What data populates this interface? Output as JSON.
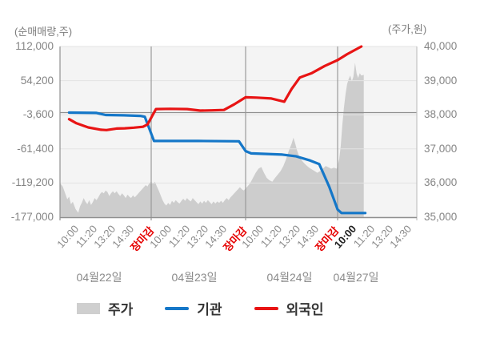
{
  "chart_data": {
    "type": "composite",
    "title": "",
    "x_axis": {
      "unit": "day_fraction",
      "days": [
        {
          "label": "04월22일",
          "times": [
            "10:00",
            "11:20",
            "13:20",
            "14:30",
            "장마감"
          ]
        },
        {
          "label": "04월23일",
          "times": [
            "10:00",
            "11:20",
            "13:20",
            "14:30",
            "장마감"
          ]
        },
        {
          "label": "04월24일",
          "times": [
            "10:00",
            "11:20",
            "13:20",
            "14:30",
            "장마감"
          ]
        },
        {
          "label": "04월27일",
          "times": [
            "10:00",
            "11:20",
            "13:20",
            "14:30"
          ],
          "current_time": "10:00"
        }
      ],
      "close_label": "장마감",
      "close_label_color": "#e60000"
    },
    "left_axis": {
      "label": "(순매매량,주)",
      "tick_labels": [
        "112,000",
        "54,200",
        "-3,600",
        "-61,400",
        "-119,200",
        "-177,000"
      ],
      "ticks": [
        112000,
        54200,
        -3600,
        -61400,
        -119200,
        -177000
      ]
    },
    "right_axis": {
      "label": "(주가,원)",
      "tick_labels": [
        "40,000",
        "39,000",
        "38,000",
        "37,000",
        "36,000",
        "35,000"
      ],
      "ticks": [
        40000,
        39000,
        38000,
        37000,
        36000,
        35000
      ]
    },
    "series": [
      {
        "name": "주가",
        "type": "area",
        "axis": "right",
        "color": "#cfcfcf",
        "points": [
          [
            0.0,
            36000
          ],
          [
            0.03,
            35900
          ],
          [
            0.05,
            35750
          ],
          [
            0.08,
            35520
          ],
          [
            0.1,
            35600
          ],
          [
            0.12,
            35380
          ],
          [
            0.14,
            35450
          ],
          [
            0.17,
            35240
          ],
          [
            0.2,
            35130
          ],
          [
            0.22,
            35320
          ],
          [
            0.24,
            35430
          ],
          [
            0.26,
            35560
          ],
          [
            0.28,
            35450
          ],
          [
            0.3,
            35380
          ],
          [
            0.32,
            35500
          ],
          [
            0.34,
            35360
          ],
          [
            0.36,
            35440
          ],
          [
            0.38,
            35560
          ],
          [
            0.4,
            35500
          ],
          [
            0.42,
            35580
          ],
          [
            0.44,
            35680
          ],
          [
            0.46,
            35740
          ],
          [
            0.48,
            35700
          ],
          [
            0.5,
            35780
          ],
          [
            0.52,
            35740
          ],
          [
            0.54,
            35620
          ],
          [
            0.56,
            35700
          ],
          [
            0.58,
            35760
          ],
          [
            0.6,
            35700
          ],
          [
            0.62,
            35760
          ],
          [
            0.64,
            35680
          ],
          [
            0.66,
            35620
          ],
          [
            0.68,
            35700
          ],
          [
            0.7,
            35640
          ],
          [
            0.72,
            35560
          ],
          [
            0.74,
            35660
          ],
          [
            0.76,
            35600
          ],
          [
            0.78,
            35560
          ],
          [
            0.8,
            35640
          ],
          [
            0.82,
            35580
          ],
          [
            0.84,
            35640
          ],
          [
            0.86,
            35700
          ],
          [
            0.88,
            35760
          ],
          [
            0.9,
            35820
          ],
          [
            0.92,
            35880
          ],
          [
            0.94,
            35940
          ],
          [
            0.96,
            35900
          ],
          [
            0.98,
            36000
          ],
          [
            1.0,
            36040
          ],
          [
            1.02,
            35980
          ],
          [
            1.04,
            36040
          ],
          [
            1.06,
            35900
          ],
          [
            1.08,
            35780
          ],
          [
            1.1,
            35640
          ],
          [
            1.12,
            35500
          ],
          [
            1.14,
            35400
          ],
          [
            1.16,
            35340
          ],
          [
            1.18,
            35420
          ],
          [
            1.2,
            35360
          ],
          [
            1.22,
            35480
          ],
          [
            1.24,
            35420
          ],
          [
            1.26,
            35500
          ],
          [
            1.28,
            35440
          ],
          [
            1.3,
            35400
          ],
          [
            1.32,
            35480
          ],
          [
            1.34,
            35540
          ],
          [
            1.36,
            35480
          ],
          [
            1.38,
            35560
          ],
          [
            1.4,
            35500
          ],
          [
            1.42,
            35460
          ],
          [
            1.44,
            35560
          ],
          [
            1.46,
            35500
          ],
          [
            1.48,
            35440
          ],
          [
            1.5,
            35380
          ],
          [
            1.52,
            35460
          ],
          [
            1.54,
            35400
          ],
          [
            1.56,
            35480
          ],
          [
            1.58,
            35420
          ],
          [
            1.6,
            35500
          ],
          [
            1.62,
            35440
          ],
          [
            1.64,
            35380
          ],
          [
            1.66,
            35460
          ],
          [
            1.68,
            35400
          ],
          [
            1.7,
            35460
          ],
          [
            1.72,
            35420
          ],
          [
            1.74,
            35480
          ],
          [
            1.76,
            35420
          ],
          [
            1.78,
            35500
          ],
          [
            1.8,
            35560
          ],
          [
            1.82,
            35500
          ],
          [
            1.84,
            35580
          ],
          [
            1.86,
            35640
          ],
          [
            1.88,
            35700
          ],
          [
            1.9,
            35760
          ],
          [
            1.92,
            35820
          ],
          [
            1.94,
            35880
          ],
          [
            1.96,
            35820
          ],
          [
            1.98,
            35780
          ],
          [
            2.0,
            35840
          ],
          [
            2.02,
            35900
          ],
          [
            2.05,
            36000
          ],
          [
            2.08,
            36150
          ],
          [
            2.11,
            36300
          ],
          [
            2.14,
            36420
          ],
          [
            2.17,
            36470
          ],
          [
            2.2,
            36300
          ],
          [
            2.23,
            36150
          ],
          [
            2.26,
            36080
          ],
          [
            2.29,
            36040
          ],
          [
            2.32,
            36150
          ],
          [
            2.35,
            36250
          ],
          [
            2.38,
            36350
          ],
          [
            2.41,
            36500
          ],
          [
            2.44,
            36700
          ],
          [
            2.47,
            36950
          ],
          [
            2.5,
            37150
          ],
          [
            2.52,
            37330
          ],
          [
            2.54,
            37150
          ],
          [
            2.56,
            36950
          ],
          [
            2.58,
            36800
          ],
          [
            2.6,
            36700
          ],
          [
            2.63,
            36600
          ],
          [
            2.66,
            36520
          ],
          [
            2.69,
            36450
          ],
          [
            2.72,
            36400
          ],
          [
            2.75,
            36350
          ],
          [
            2.78,
            36300
          ],
          [
            2.81,
            36350
          ],
          [
            2.84,
            36420
          ],
          [
            2.87,
            36500
          ],
          [
            2.9,
            36460
          ],
          [
            2.93,
            36420
          ],
          [
            2.96,
            36450
          ],
          [
            2.99,
            36420
          ],
          [
            3.0,
            36500
          ],
          [
            3.02,
            36700
          ],
          [
            3.04,
            37100
          ],
          [
            3.06,
            37700
          ],
          [
            3.08,
            38200
          ],
          [
            3.1,
            38600
          ],
          [
            3.12,
            38900
          ],
          [
            3.14,
            39050
          ],
          [
            3.16,
            39150
          ],
          [
            3.18,
            38980
          ],
          [
            3.2,
            39120
          ],
          [
            3.22,
            39520
          ],
          [
            3.24,
            39200
          ],
          [
            3.26,
            39080
          ],
          [
            3.28,
            39220
          ],
          [
            3.3,
            39150
          ],
          [
            3.33,
            39170
          ]
        ]
      },
      {
        "name": "기관",
        "type": "line",
        "axis": "left",
        "color": "#1577c8",
        "points": [
          [
            0.1,
            0
          ],
          [
            0.4,
            -500
          ],
          [
            0.5,
            -4000
          ],
          [
            0.7,
            -4500
          ],
          [
            0.88,
            -5500
          ],
          [
            0.93,
            -7000
          ],
          [
            1.03,
            -48000
          ],
          [
            1.5,
            -48000
          ],
          [
            1.93,
            -48500
          ],
          [
            2.0,
            -65000
          ],
          [
            2.06,
            -69000
          ],
          [
            2.4,
            -71000
          ],
          [
            2.55,
            -74000
          ],
          [
            2.7,
            -81000
          ],
          [
            2.8,
            -87000
          ],
          [
            2.91,
            -126000
          ],
          [
            3.0,
            -164000
          ],
          [
            3.05,
            -170000
          ],
          [
            3.35,
            -170000
          ]
        ]
      },
      {
        "name": "외국인",
        "type": "line",
        "axis": "left",
        "color": "#e81414",
        "points": [
          [
            0.1,
            -11000
          ],
          [
            0.18,
            -18000
          ],
          [
            0.31,
            -25000
          ],
          [
            0.45,
            -29000
          ],
          [
            0.51,
            -29500
          ],
          [
            0.62,
            -27000
          ],
          [
            0.71,
            -26500
          ],
          [
            0.81,
            -25500
          ],
          [
            0.91,
            -24000
          ],
          [
            0.96,
            -20000
          ],
          [
            1.05,
            6000
          ],
          [
            1.2,
            6500
          ],
          [
            1.38,
            6000
          ],
          [
            1.52,
            3500
          ],
          [
            1.64,
            3800
          ],
          [
            1.77,
            4500
          ],
          [
            1.88,
            14000
          ],
          [
            2.0,
            26000
          ],
          [
            2.12,
            25500
          ],
          [
            2.28,
            24000
          ],
          [
            2.42,
            18500
          ],
          [
            2.5,
            40000
          ],
          [
            2.59,
            59500
          ],
          [
            2.72,
            67000
          ],
          [
            2.86,
            79000
          ],
          [
            3.0,
            89000
          ],
          [
            3.12,
            99000
          ],
          [
            3.3,
            112000
          ]
        ]
      }
    ],
    "zero_line": 0,
    "colors": {
      "plot_bg": "#f4f4f4",
      "grid_light": "#e3e3e3",
      "grid_dark": "#8f8f8f"
    }
  },
  "legend": [
    {
      "label": "주가"
    },
    {
      "label": "기관"
    },
    {
      "label": "외국인"
    }
  ]
}
